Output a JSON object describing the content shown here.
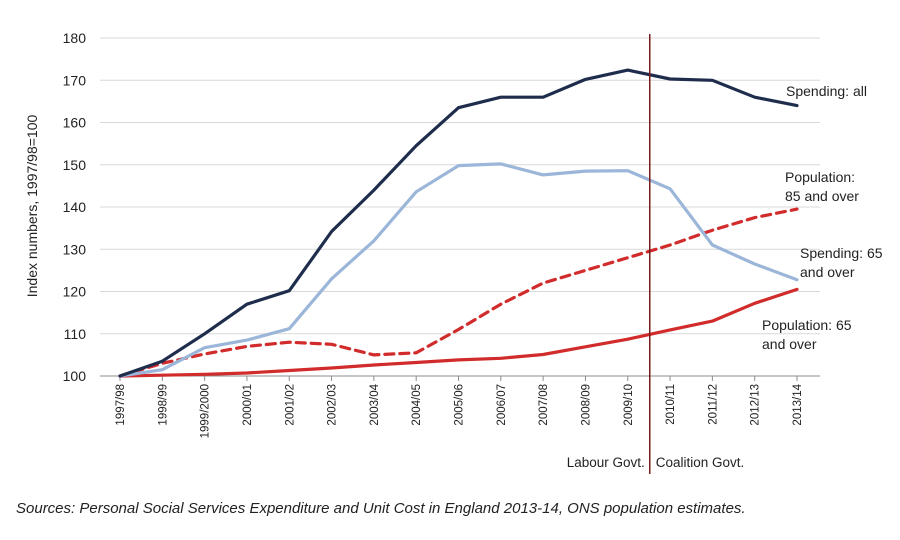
{
  "chart_data": {
    "type": "line",
    "title": "",
    "xlabel": "",
    "ylabel": "Index numbers, 1997/98=100",
    "ylim": [
      100,
      180
    ],
    "yticks": [
      100,
      110,
      120,
      130,
      140,
      150,
      160,
      170,
      180
    ],
    "grid": "horizontal",
    "categories": [
      "1997/98",
      "1998/99",
      "1999/2000",
      "2000/01",
      "2001/02",
      "2002/03",
      "2003/04",
      "2004/05",
      "2005/06",
      "2006/07",
      "2007/08",
      "2008/09",
      "2009/10",
      "2010/11",
      "2011/12",
      "2012/13",
      "2013/14"
    ],
    "series": [
      {
        "name": "Spending: all",
        "label_lines": [
          "Spending: all"
        ],
        "color": "#1f2d4d",
        "dash": false,
        "values": [
          100,
          103.5,
          110,
          117,
          120.2,
          134.2,
          144,
          154.5,
          163.5,
          166,
          166,
          170.2,
          172.4,
          170.3,
          170,
          166,
          164
        ]
      },
      {
        "name": "Spending: 65 and over",
        "label_lines": [
          "Spending: 65",
          "and over"
        ],
        "color": "#9bb6d8",
        "dash": false,
        "values": [
          100,
          101.5,
          106.7,
          108.5,
          111.2,
          123,
          132,
          143.6,
          149.8,
          150.2,
          147.6,
          148.5,
          148.6,
          144.3,
          131,
          126.5,
          122.8
        ]
      },
      {
        "name": "Population: 85 and over",
        "label_lines": [
          "Population:",
          "85 and over"
        ],
        "color": "#d12b2b",
        "dash": true,
        "values": [
          100,
          103,
          105.2,
          107,
          108,
          107.5,
          105,
          105.5,
          111,
          117,
          122,
          125,
          128,
          131,
          134.5,
          137.5,
          139.5
        ]
      },
      {
        "name": "Population: 65 and over",
        "label_lines": [
          "Population: 65",
          "and over"
        ],
        "color": "#d12b2b",
        "dash": false,
        "values": [
          100,
          100.2,
          100.4,
          100.7,
          101.3,
          101.9,
          102.6,
          103.2,
          103.8,
          104.2,
          105.1,
          106.9,
          108.7,
          110.9,
          113,
          117.2,
          120.5
        ]
      }
    ],
    "divider": {
      "after_category": "2009/10",
      "left_label": "Labour Govt.",
      "right_label": "Coalition Govt.",
      "color": "#7a1a1a"
    }
  },
  "source_note": "Sources: Personal Social Services Expenditure and Unit Cost in England 2013-14, ONS population estimates."
}
